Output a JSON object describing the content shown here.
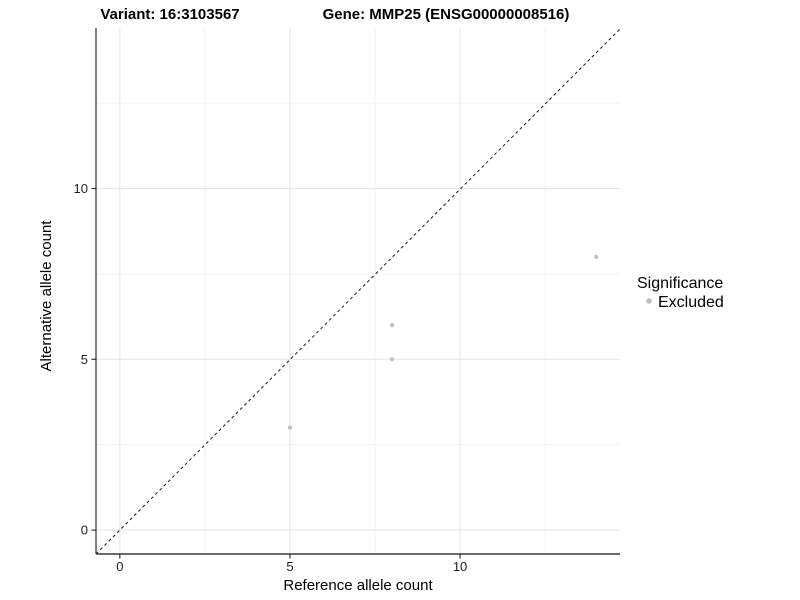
{
  "chart_data": {
    "type": "scatter",
    "title_left": "Variant: 16:3103567",
    "title_right": "Gene: MMP25 (ENSG00000008516)",
    "xlabel": "Reference allele count",
    "ylabel": "Alternative allele count",
    "xlim": [
      -0.7,
      14.7
    ],
    "ylim": [
      -0.7,
      14.7
    ],
    "x_major_ticks": [
      0,
      5,
      10
    ],
    "y_major_ticks": [
      0,
      5,
      10
    ],
    "x_minor_ticks": [
      2.5,
      7.5,
      12.5
    ],
    "y_minor_ticks": [
      2.5,
      7.5,
      12.5
    ],
    "grid": true,
    "identity_line": {
      "style": "dashed",
      "color": "#1a1a1a",
      "dash": "3,3",
      "width": 1
    },
    "series": [
      {
        "name": "Excluded",
        "color": "#bebebe",
        "point_radius": 2.1,
        "points": [
          [
            5,
            3
          ],
          [
            8,
            5
          ],
          [
            8,
            6
          ],
          [
            14,
            8
          ]
        ]
      }
    ],
    "legend": {
      "title": "Significance",
      "position": "right",
      "items": [
        {
          "label": "Excluded",
          "color": "#bebebe"
        }
      ]
    }
  },
  "colors": {
    "background": "#ffffff",
    "grid_major": "#e7e7e7",
    "grid_minor": "#f1f1f1",
    "axis_line": "#3a3a3a",
    "tick_mark": "#333333",
    "point": "#bebebe"
  }
}
